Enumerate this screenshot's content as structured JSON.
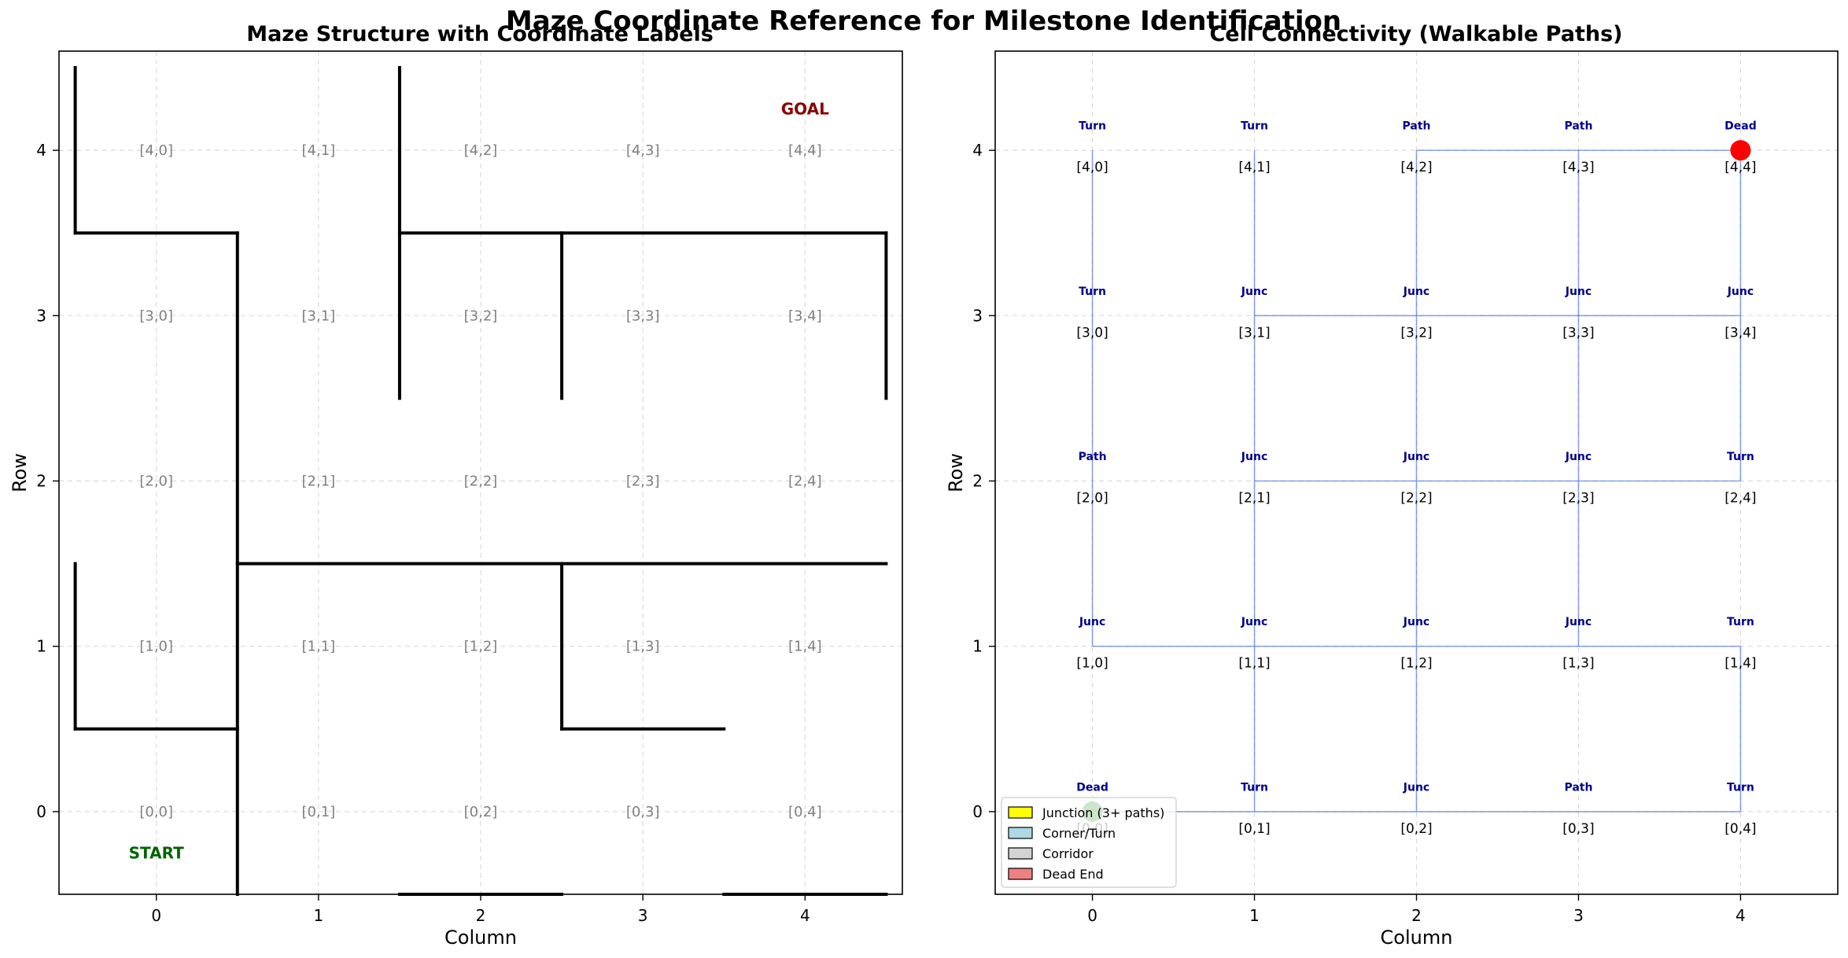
{
  "suptitle": "Maze Coordinate Reference for Milestone Identification",
  "chart_data": [
    {
      "type": "maze",
      "title": "Maze Structure with Coordinate Labels",
      "xlabel": "Column",
      "ylabel": "Row",
      "xlim": [
        -0.6,
        4.6
      ],
      "ylim": [
        4.6,
        -0.5
      ],
      "xticks": [
        "0",
        "1",
        "2",
        "3",
        "4"
      ],
      "yticks": [
        "0",
        "1",
        "2",
        "3",
        "4"
      ],
      "grid": true,
      "cell_labels": [
        [
          "[0,0]",
          "[0,1]",
          "[0,2]",
          "[0,3]",
          "[0,4]"
        ],
        [
          "[1,0]",
          "[1,1]",
          "[1,2]",
          "[1,3]",
          "[1,4]"
        ],
        [
          "[2,0]",
          "[2,1]",
          "[2,2]",
          "[2,3]",
          "[2,4]"
        ],
        [
          "[3,0]",
          "[3,1]",
          "[3,2]",
          "[3,3]",
          "[3,4]"
        ],
        [
          "[4,0]",
          "[4,1]",
          "[4,2]",
          "[4,3]",
          "[4,4]"
        ]
      ],
      "walls": [
        {
          "x1": 0.5,
          "y1": -0.5,
          "x2": 0.5,
          "y2": 3.5
        },
        {
          "x1": -0.5,
          "y1": 0.5,
          "x2": 0.5,
          "y2": 0.5
        },
        {
          "x1": -0.5,
          "y1": 0.5,
          "x2": -0.5,
          "y2": 1.5
        },
        {
          "x1": 1.5,
          "y1": -0.5,
          "x2": 2.5,
          "y2": -0.5
        },
        {
          "x1": 3.5,
          "y1": -0.5,
          "x2": 4.5,
          "y2": -0.5
        },
        {
          "x1": 2.5,
          "y1": 0.5,
          "x2": 3.5,
          "y2": 0.5
        },
        {
          "x1": 2.5,
          "y1": 0.5,
          "x2": 2.5,
          "y2": 1.5
        },
        {
          "x1": 0.5,
          "y1": 1.5,
          "x2": 4.5,
          "y2": 1.5
        },
        {
          "x1": -0.5,
          "y1": 3.5,
          "x2": 0.5,
          "y2": 3.5
        },
        {
          "x1": -0.5,
          "y1": 3.5,
          "x2": -0.5,
          "y2": 4.5
        },
        {
          "x1": 1.5,
          "y1": 2.5,
          "x2": 1.5,
          "y2": 4.5
        },
        {
          "x1": 1.5,
          "y1": 3.5,
          "x2": 4.5,
          "y2": 3.5
        },
        {
          "x1": 2.5,
          "y1": 2.5,
          "x2": 2.5,
          "y2": 3.5
        },
        {
          "x1": 4.5,
          "y1": 2.5,
          "x2": 4.5,
          "y2": 3.5
        }
      ],
      "start": {
        "row": 0,
        "col": 0,
        "label": "START",
        "color": "#008000"
      },
      "goal": {
        "row": 4,
        "col": 4,
        "label": "GOAL",
        "color": "#ff0000"
      }
    },
    {
      "type": "heatmap",
      "title": "Cell Connectivity (Walkable Paths)",
      "xlabel": "Column",
      "ylabel": "Row",
      "xlim": [
        -0.6,
        4.6
      ],
      "ylim": [
        4.6,
        -0.5
      ],
      "xticks": [
        "0",
        "1",
        "2",
        "3",
        "4"
      ],
      "yticks": [
        "0",
        "1",
        "2",
        "3",
        "4"
      ],
      "grid": true,
      "cells": [
        [
          {
            "label": "[0,0]",
            "type": "Dead"
          },
          {
            "label": "[0,1]",
            "type": "Turn"
          },
          {
            "label": "[0,2]",
            "type": "Junc"
          },
          {
            "label": "[0,3]",
            "type": "Path"
          },
          {
            "label": "[0,4]",
            "type": "Turn"
          }
        ],
        [
          {
            "label": "[1,0]",
            "type": "Junc"
          },
          {
            "label": "[1,1]",
            "type": "Junc"
          },
          {
            "label": "[1,2]",
            "type": "Junc"
          },
          {
            "label": "[1,3]",
            "type": "Junc"
          },
          {
            "label": "[1,4]",
            "type": "Turn"
          }
        ],
        [
          {
            "label": "[2,0]",
            "type": "Path"
          },
          {
            "label": "[2,1]",
            "type": "Junc"
          },
          {
            "label": "[2,2]",
            "type": "Junc"
          },
          {
            "label": "[2,3]",
            "type": "Junc"
          },
          {
            "label": "[2,4]",
            "type": "Turn"
          }
        ],
        [
          {
            "label": "[3,0]",
            "type": "Turn"
          },
          {
            "label": "[3,1]",
            "type": "Junc"
          },
          {
            "label": "[3,2]",
            "type": "Junc"
          },
          {
            "label": "[3,3]",
            "type": "Junc"
          },
          {
            "label": "[3,4]",
            "type": "Junc"
          }
        ],
        [
          {
            "label": "[4,0]",
            "type": "Turn"
          },
          {
            "label": "[4,1]",
            "type": "Turn"
          },
          {
            "label": "[4,2]",
            "type": "Path"
          },
          {
            "label": "[4,3]",
            "type": "Path"
          },
          {
            "label": "[4,4]",
            "type": "Dead"
          }
        ]
      ],
      "type_colors": {
        "Junc": "#ffff00",
        "Turn": "#add8e6",
        "Path": "#d3d3d3",
        "Dead": "#f08080"
      },
      "connections": [
        [
          [
            0,
            0
          ],
          [
            0,
            1
          ]
        ],
        [
          [
            0,
            1
          ],
          [
            0,
            2
          ]
        ],
        [
          [
            0,
            2
          ],
          [
            0,
            3
          ]
        ],
        [
          [
            0,
            3
          ],
          [
            0,
            4
          ]
        ],
        [
          [
            0,
            1
          ],
          [
            1,
            1
          ]
        ],
        [
          [
            0,
            2
          ],
          [
            1,
            2
          ]
        ],
        [
          [
            0,
            4
          ],
          [
            1,
            4
          ]
        ],
        [
          [
            1,
            0
          ],
          [
            1,
            1
          ]
        ],
        [
          [
            1,
            1
          ],
          [
            1,
            2
          ]
        ],
        [
          [
            1,
            2
          ],
          [
            1,
            3
          ]
        ],
        [
          [
            1,
            3
          ],
          [
            1,
            4
          ]
        ],
        [
          [
            1,
            0
          ],
          [
            2,
            0
          ]
        ],
        [
          [
            1,
            1
          ],
          [
            2,
            1
          ]
        ],
        [
          [
            1,
            2
          ],
          [
            2,
            2
          ]
        ],
        [
          [
            1,
            3
          ],
          [
            2,
            3
          ]
        ],
        [
          [
            2,
            1
          ],
          [
            2,
            2
          ]
        ],
        [
          [
            2,
            2
          ],
          [
            2,
            3
          ]
        ],
        [
          [
            2,
            3
          ],
          [
            2,
            4
          ]
        ],
        [
          [
            2,
            0
          ],
          [
            3,
            0
          ]
        ],
        [
          [
            2,
            1
          ],
          [
            3,
            1
          ]
        ],
        [
          [
            2,
            2
          ],
          [
            3,
            2
          ]
        ],
        [
          [
            2,
            3
          ],
          [
            3,
            3
          ]
        ],
        [
          [
            2,
            4
          ],
          [
            3,
            4
          ]
        ],
        [
          [
            3,
            1
          ],
          [
            3,
            2
          ]
        ],
        [
          [
            3,
            2
          ],
          [
            3,
            3
          ]
        ],
        [
          [
            3,
            3
          ],
          [
            3,
            4
          ]
        ],
        [
          [
            3,
            0
          ],
          [
            4,
            0
          ]
        ],
        [
          [
            3,
            1
          ],
          [
            4,
            1
          ]
        ],
        [
          [
            3,
            2
          ],
          [
            4,
            2
          ]
        ],
        [
          [
            3,
            3
          ],
          [
            4,
            3
          ]
        ],
        [
          [
            3,
            4
          ],
          [
            4,
            4
          ]
        ],
        [
          [
            4,
            2
          ],
          [
            4,
            3
          ]
        ],
        [
          [
            4,
            3
          ],
          [
            4,
            4
          ]
        ]
      ],
      "line_color": "#4169e1",
      "markers": [
        {
          "row": 0,
          "col": 0,
          "color": "#008000"
        },
        {
          "row": 4,
          "col": 4,
          "color": "#ff0000"
        }
      ],
      "legend": {
        "placement": "lower-left",
        "entries": [
          {
            "label": "Junction (3+ paths)",
            "color": "#ffff00"
          },
          {
            "label": "Corner/Turn",
            "color": "#add8e6"
          },
          {
            "label": "Corridor",
            "color": "#d3d3d3"
          },
          {
            "label": "Dead End",
            "color": "#f08080"
          }
        ]
      }
    }
  ]
}
